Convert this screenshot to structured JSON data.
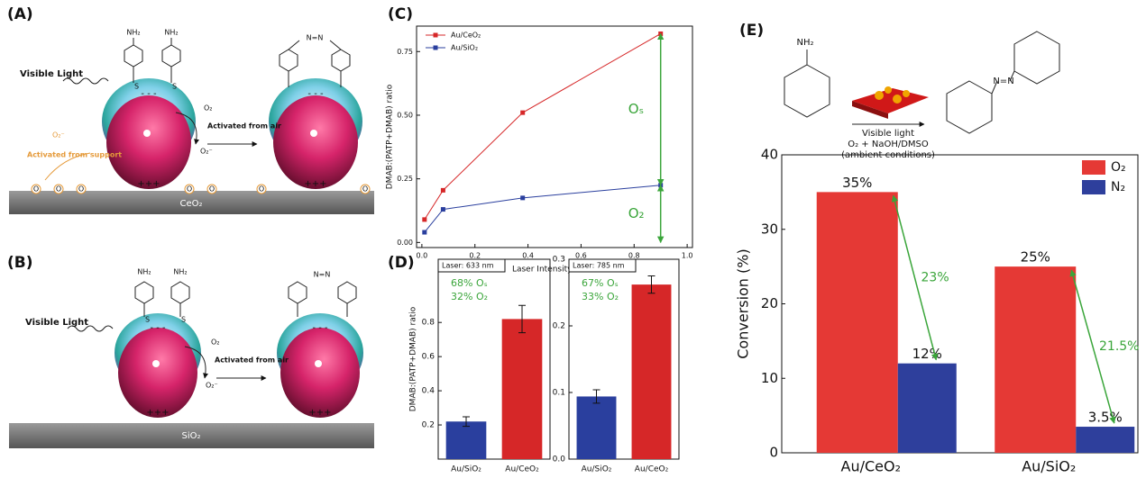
{
  "labels": {
    "a": "(A)",
    "b": "(B)",
    "c": "(C)",
    "d": "(D)",
    "e": "(E)"
  },
  "schematic_a": {
    "nh2": "NH₂",
    "azo": "N=N",
    "light": "Visible Light",
    "o2": "O₂",
    "air": "Activated from air",
    "superoxide": "O₂⁻",
    "support_superoxide": "O₂⁻",
    "support_note": "Activated from support",
    "lattice_o": "O",
    "surface": "CeO₂",
    "charge_neg": "- - -",
    "charge_pos": "+++",
    "thiol": "S"
  },
  "schematic_b": {
    "nh2": "NH₂",
    "azo": "N=N",
    "light": "Visible Light",
    "o2": "O₂",
    "air": "Activated from air",
    "superoxide": "O₂⁻",
    "surface": "SiO₂",
    "charge_neg": "- - -",
    "charge_pos": "+++",
    "thiol": "S"
  },
  "reaction": {
    "amine": "NH₂",
    "azo": "N=N",
    "condition1": "Visible light",
    "condition2": "O₂ + NaOH/DMSO",
    "condition3": "(ambient conditions)"
  },
  "chart_data": [
    {
      "type": "line",
      "xlabel": "Laser Intensity (mW)",
      "ylabel": "DMAB:(PATP+DMAB) ratio",
      "x": [
        0.01,
        0.08,
        0.38,
        0.9
      ],
      "series": [
        {
          "name": "Au/CeO₂",
          "color": "#d62728",
          "values": [
            0.09,
            0.205,
            0.51,
            0.82
          ]
        },
        {
          "name": "Au/SiO₂",
          "color": "#2a3f9e",
          "values": [
            0.04,
            0.13,
            0.175,
            0.225
          ]
        }
      ],
      "xlim": [
        -0.02,
        1.02
      ],
      "xticks": [
        {
          "value": 0,
          "label": "0.0"
        },
        0.2,
        0.4,
        0.6,
        0.8,
        {
          "value": 1,
          "label": "1.0"
        }
      ],
      "ylim": [
        -0.02,
        0.85
      ],
      "yticks": [
        {
          "value": 0,
          "label": "0.00"
        },
        0.25,
        {
          "value": 0.5,
          "label": "0.50"
        },
        0.75
      ],
      "legend": "upper left",
      "annotations": [
        "Oₛ",
        "O₂"
      ],
      "annotation_color": "#3aa53a"
    },
    {
      "type": "bar",
      "ylabel": "DMAB:(PATP+DMAB) ratio",
      "categories": [
        "Au/SiO₂",
        "Au/CeO₂"
      ],
      "values": [
        0.22,
        0.82
      ],
      "errors": [
        0.028,
        0.08
      ],
      "colors": [
        "#2a3f9e",
        "#d62728"
      ],
      "ylim": [
        0,
        1.17
      ],
      "yticks": [
        0.2,
        0.4,
        0.6,
        0.8
      ],
      "notes": [
        "Laser: 633 nm",
        "68% Oₛ",
        "32% O₂"
      ]
    },
    {
      "type": "bar",
      "categories": [
        "Au/SiO₂",
        "Au/CeO₂"
      ],
      "values": [
        0.094,
        0.262
      ],
      "errors": [
        0.01,
        0.013
      ],
      "colors": [
        "#2a3f9e",
        "#d62728"
      ],
      "ylim": [
        0,
        0.3
      ],
      "yticks": [
        {
          "value": 0,
          "label": "0.0"
        },
        0.1,
        0.2,
        0.3
      ],
      "notes": [
        "Laser: 785 nm",
        "67% Oₛ",
        "33% O₂"
      ]
    },
    {
      "type": "grouped-bar",
      "ylabel": "Conversion (%)",
      "categories": [
        "Au/CeO₂",
        "Au/SiO₂"
      ],
      "series": [
        {
          "name": "O₂",
          "color": "#e53935",
          "values": [
            35,
            25
          ],
          "value_labels": [
            "35%",
            "25%"
          ]
        },
        {
          "name": "N₂",
          "color": "#2e3f9c",
          "values": [
            12,
            3.5
          ],
          "value_labels": [
            "12%",
            "3.5%"
          ]
        }
      ],
      "ylim": [
        0,
        40
      ],
      "yticks": [
        0,
        10,
        20,
        30,
        40
      ],
      "legend": "upper right",
      "annotations": [
        "23%",
        "21.5%"
      ],
      "annotation_color": "#3aa53a"
    }
  ]
}
